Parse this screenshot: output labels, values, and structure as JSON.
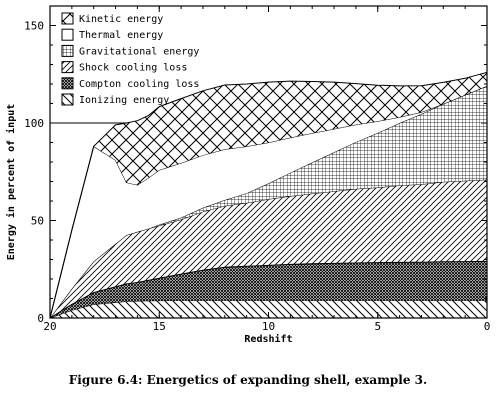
{
  "caption": "Figure 6.4: Energetics of expanding shell, example 3.",
  "chart_data": {
    "type": "area",
    "stacked": true,
    "xlabel": "Redshift",
    "ylabel": "Energy in percent of input",
    "x_reversed": true,
    "xlim": [
      20,
      0
    ],
    "ylim": [
      0,
      160
    ],
    "xticks": [
      20,
      15,
      10,
      5,
      0
    ],
    "yticks": [
      0,
      50,
      100,
      150
    ],
    "x_tick_labels": [
      "20",
      "15",
      "10",
      "5",
      "0"
    ],
    "y_tick_labels": [
      "0",
      "50",
      "100",
      "150"
    ],
    "grid": false,
    "legend_position": "top-left",
    "reference_line": {
      "y": 100,
      "x_from": 20,
      "x_to": 16.5
    },
    "x": [
      20,
      19,
      18,
      17,
      16.5,
      16,
      15.5,
      15,
      14,
      13,
      12,
      11,
      10,
      9,
      8,
      7,
      6,
      5,
      4,
      3,
      2,
      1,
      0
    ],
    "series": [
      {
        "name": "Ionizing energy",
        "pattern": "diag-up-left",
        "values": [
          0,
          4,
          7,
          8,
          8.5,
          8.7,
          8.8,
          8.9,
          9,
          9,
          9,
          9,
          9,
          9,
          9,
          9,
          9,
          9,
          9,
          9,
          9,
          9,
          9
        ]
      },
      {
        "name": "Compton cooling loss",
        "pattern": "crosshatch-dense",
        "values": [
          0,
          3,
          6,
          8,
          9,
          9.5,
          10.5,
          11.5,
          13.5,
          15.5,
          17,
          17.5,
          18,
          18.5,
          18.8,
          19,
          19.2,
          19.4,
          19.5,
          19.6,
          19.8,
          19.9,
          20
        ]
      },
      {
        "name": "Shock cooling loss",
        "pattern": "diag-up-right",
        "values": [
          0,
          8,
          16,
          22,
          25,
          26,
          26.5,
          27,
          28,
          30,
          31.5,
          32.5,
          34,
          35,
          36,
          37,
          38,
          38.5,
          39.5,
          40,
          41,
          41.5,
          42
        ]
      },
      {
        "name": "Gravitational energy",
        "pattern": "grid",
        "values": [
          0,
          0,
          0,
          0,
          0,
          0,
          0,
          0.5,
          1,
          2,
          3,
          5,
          8,
          12,
          16,
          20,
          24,
          28,
          32,
          36,
          40,
          44,
          48
        ]
      },
      {
        "name": "Thermal energy",
        "pattern": "blank",
        "values": [
          0,
          30,
          59,
          43,
          27,
          24,
          26,
          28,
          28,
          27,
          26,
          24,
          21,
          18,
          15,
          12,
          9,
          6,
          3,
          1,
          0,
          0,
          0
        ]
      },
      {
        "name": "Kinetic energy",
        "pattern": "diamond",
        "values": [
          0,
          0,
          0,
          18,
          30.5,
          33,
          32,
          32.5,
          33,
          33,
          33,
          32,
          31,
          29,
          26.5,
          24,
          21,
          18.5,
          16,
          13.5,
          11,
          8.5,
          7
        ]
      }
    ]
  }
}
